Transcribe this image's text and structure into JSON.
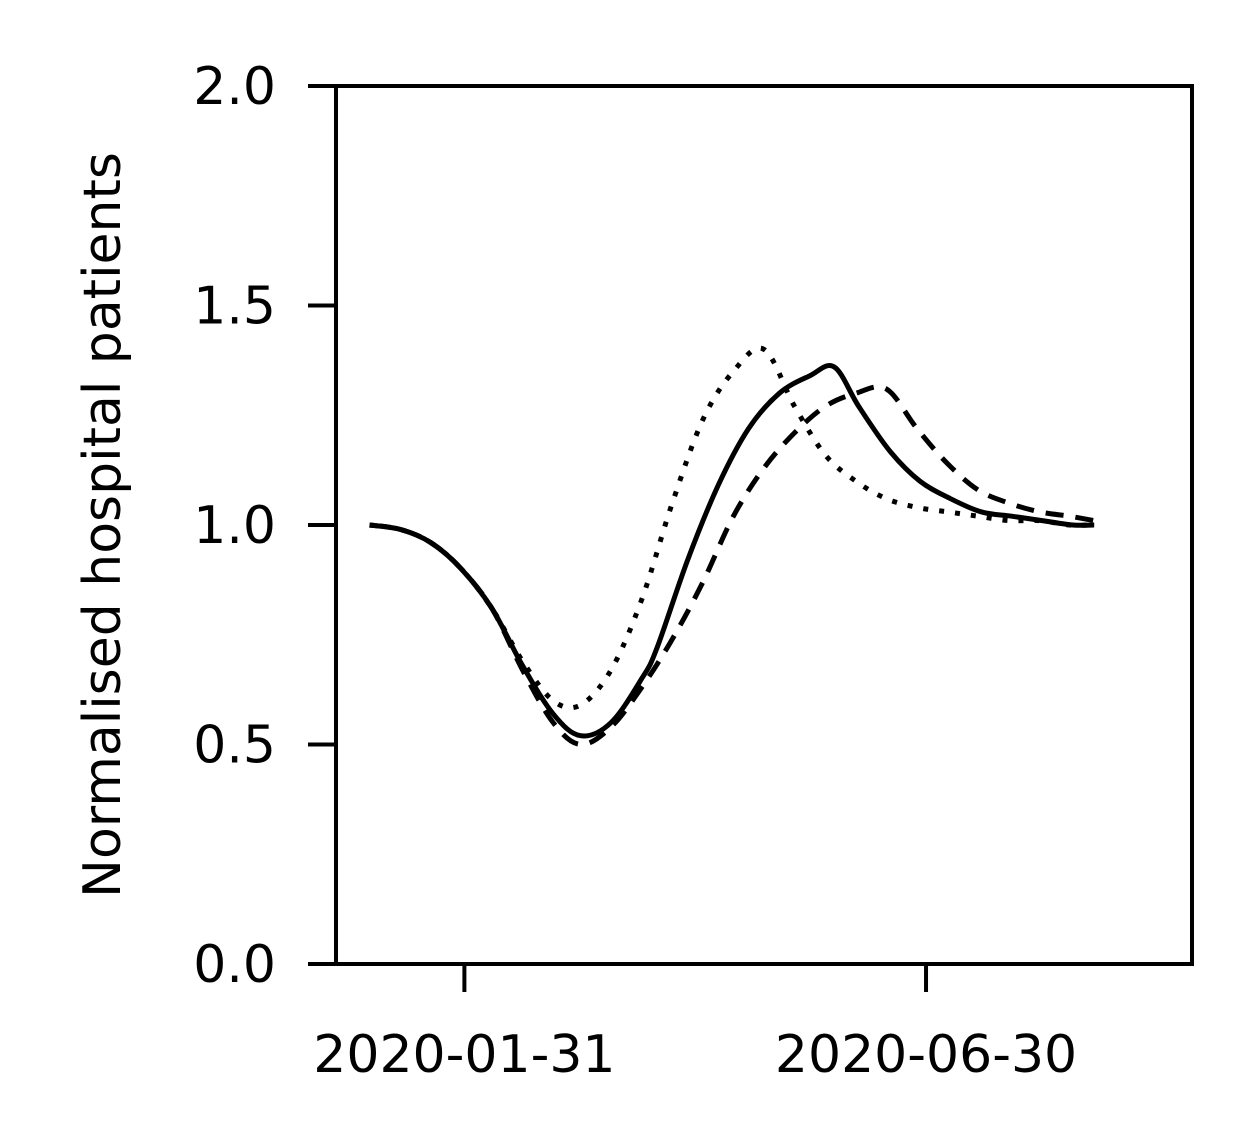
{
  "chart_data": {
    "type": "line",
    "title": "",
    "xlabel": "",
    "ylabel": "Normalised hospital patients",
    "ylim": [
      0.0,
      2.0
    ],
    "xlim": [
      "2019-12-20",
      "2020-09-25"
    ],
    "yticks": [
      {
        "value": 0.0,
        "label": "0.0"
      },
      {
        "value": 0.5,
        "label": "0.5"
      },
      {
        "value": 1.0,
        "label": "1.0"
      },
      {
        "value": 1.5,
        "label": "1.5"
      },
      {
        "value": 2.0,
        "label": "2.0"
      }
    ],
    "xticks": [
      {
        "value": "2020-01-31",
        "label": "2020-01-31"
      },
      {
        "value": "2020-06-30",
        "label": "2020-06-30"
      }
    ],
    "grid": false,
    "series": [
      {
        "style": "solid",
        "points": [
          [
            "2019-12-31",
            1.0
          ],
          [
            "2020-01-10",
            0.99
          ],
          [
            "2020-01-20",
            0.96
          ],
          [
            "2020-01-30",
            0.9
          ],
          [
            "2020-02-09",
            0.81
          ],
          [
            "2020-02-19",
            0.68
          ],
          [
            "2020-02-29",
            0.57
          ],
          [
            "2020-03-09",
            0.52
          ],
          [
            "2020-03-19",
            0.55
          ],
          [
            "2020-03-29",
            0.65
          ],
          [
            "2020-04-03",
            0.72
          ],
          [
            "2020-04-13",
            0.92
          ],
          [
            "2020-04-23",
            1.09
          ],
          [
            "2020-05-03",
            1.22
          ],
          [
            "2020-05-13",
            1.3
          ],
          [
            "2020-05-23",
            1.34
          ],
          [
            "2020-05-31",
            1.36
          ],
          [
            "2020-06-08",
            1.27
          ],
          [
            "2020-06-18",
            1.17
          ],
          [
            "2020-06-28",
            1.1
          ],
          [
            "2020-07-08",
            1.06
          ],
          [
            "2020-07-18",
            1.03
          ],
          [
            "2020-07-28",
            1.02
          ],
          [
            "2020-08-07",
            1.01
          ],
          [
            "2020-08-17",
            1.0
          ],
          [
            "2020-08-24",
            1.0
          ]
        ]
      },
      {
        "style": "dashed",
        "points": [
          [
            "2019-12-31",
            1.0
          ],
          [
            "2020-01-10",
            0.99
          ],
          [
            "2020-01-20",
            0.96
          ],
          [
            "2020-01-30",
            0.9
          ],
          [
            "2020-02-09",
            0.81
          ],
          [
            "2020-02-19",
            0.67
          ],
          [
            "2020-02-29",
            0.55
          ],
          [
            "2020-03-09",
            0.5
          ],
          [
            "2020-03-19",
            0.54
          ],
          [
            "2020-03-29",
            0.63
          ],
          [
            "2020-04-08",
            0.74
          ],
          [
            "2020-04-18",
            0.87
          ],
          [
            "2020-04-28",
            1.02
          ],
          [
            "2020-05-08",
            1.13
          ],
          [
            "2020-05-18",
            1.21
          ],
          [
            "2020-05-28",
            1.27
          ],
          [
            "2020-06-07",
            1.3
          ],
          [
            "2020-06-17",
            1.31
          ],
          [
            "2020-06-27",
            1.22
          ],
          [
            "2020-07-07",
            1.14
          ],
          [
            "2020-07-17",
            1.08
          ],
          [
            "2020-07-27",
            1.05
          ],
          [
            "2020-08-06",
            1.03
          ],
          [
            "2020-08-16",
            1.02
          ],
          [
            "2020-08-24",
            1.01
          ]
        ]
      },
      {
        "style": "dotted",
        "points": [
          [
            "2019-12-31",
            1.0
          ],
          [
            "2020-01-10",
            0.99
          ],
          [
            "2020-01-20",
            0.96
          ],
          [
            "2020-01-30",
            0.9
          ],
          [
            "2020-02-09",
            0.81
          ],
          [
            "2020-02-19",
            0.69
          ],
          [
            "2020-02-29",
            0.6
          ],
          [
            "2020-03-09",
            0.59
          ],
          [
            "2020-03-19",
            0.67
          ],
          [
            "2020-03-29",
            0.83
          ],
          [
            "2020-04-08",
            1.05
          ],
          [
            "2020-04-18",
            1.24
          ],
          [
            "2020-04-28",
            1.35
          ],
          [
            "2020-05-08",
            1.4
          ],
          [
            "2020-05-18",
            1.27
          ],
          [
            "2020-05-28",
            1.16
          ],
          [
            "2020-06-07",
            1.1
          ],
          [
            "2020-06-17",
            1.06
          ],
          [
            "2020-06-27",
            1.04
          ],
          [
            "2020-07-07",
            1.03
          ],
          [
            "2020-07-17",
            1.02
          ],
          [
            "2020-07-27",
            1.01
          ],
          [
            "2020-08-06",
            1.01
          ],
          [
            "2020-08-16",
            1.0
          ],
          [
            "2020-08-24",
            1.0
          ]
        ]
      }
    ]
  }
}
